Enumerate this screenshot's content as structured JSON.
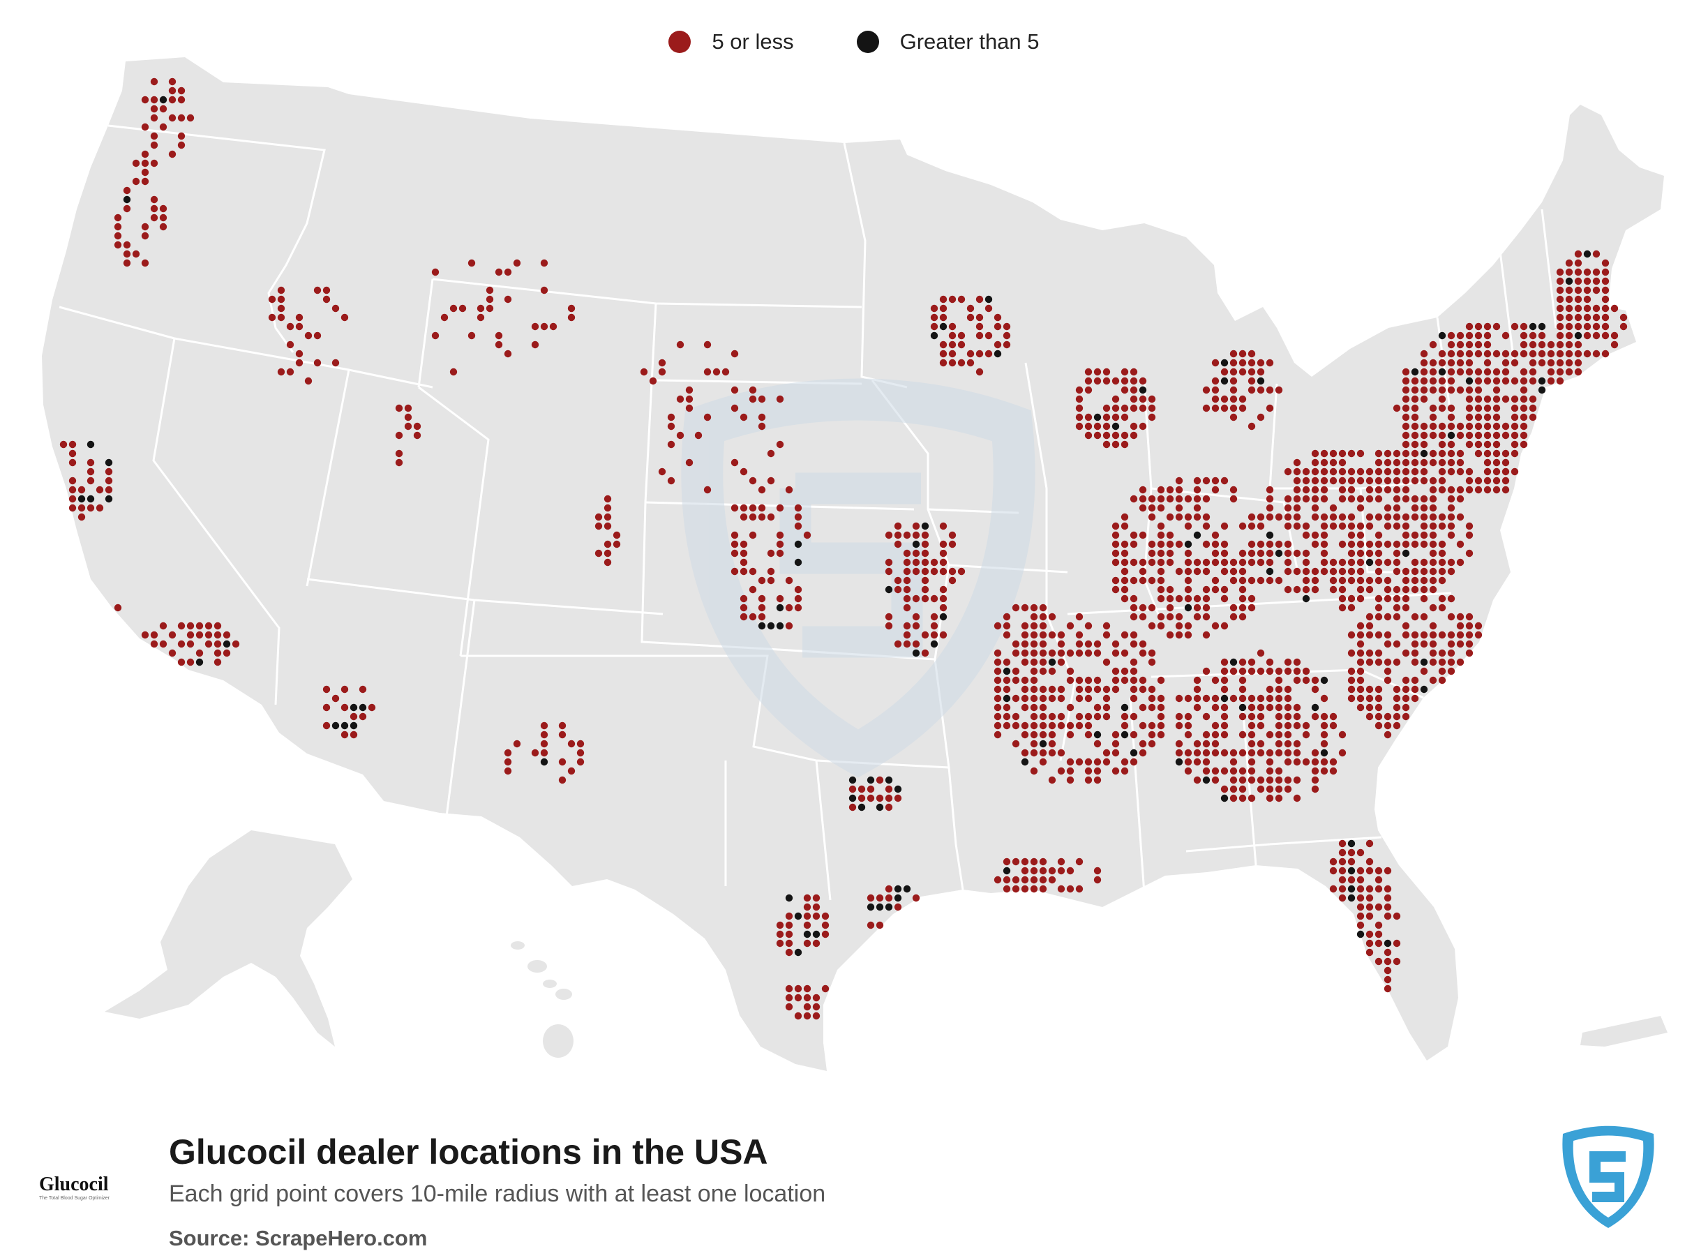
{
  "legend": {
    "items": [
      {
        "label": "5 or less",
        "color": "#9b1b1b"
      },
      {
        "label": "Greater than 5",
        "color": "#141414"
      }
    ]
  },
  "title": "Glucocil dealer locations in the USA",
  "subtitle": "Each grid point covers 10-mile radius with at least one location",
  "source": {
    "label": "Source:",
    "value": "ScrapeHero.com"
  },
  "brand_logo": {
    "name": "Glucocil",
    "tagline": "The Total Blood Sugar Optimizer"
  },
  "watermark_logo": "scrapehero-shield-icon",
  "colors": {
    "land": "#e5e5e5",
    "borders": "#ffffff",
    "low": "#9b1b1b",
    "high": "#141414",
    "watermark": "#cfdbe6",
    "logo_blue": "#3aa1d6"
  }
}
